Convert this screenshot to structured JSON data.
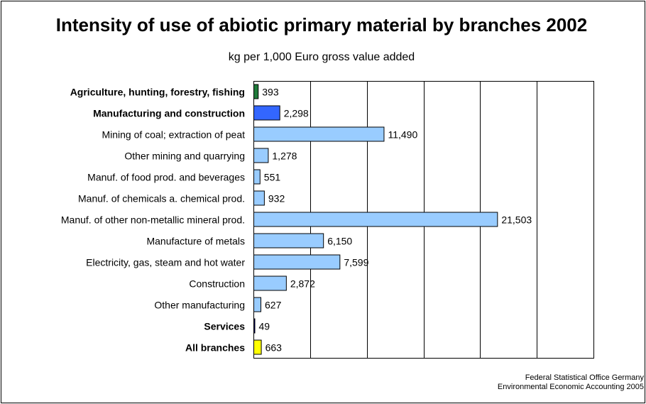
{
  "chart_data": {
    "type": "bar",
    "orientation": "horizontal",
    "title": "Intensity of use of abiotic primary material by branches 2002",
    "subtitle": "kg per 1,000 Euro gross value added",
    "categories": [
      "Agriculture, hunting, forestry, fishing",
      "Manufacturing and construction",
      "Mining of coal; extraction of peat",
      "Other mining and quarrying",
      "Manuf. of food prod. and beverages",
      "Manuf. of chemicals a. chemical prod.",
      "Manuf. of other non-metallic mineral prod.",
      "Manufacture of metals",
      "Electricity, gas, steam and hot water",
      "Construction",
      "Other manufacturing",
      "Services",
      "All branches"
    ],
    "values": [
      393,
      2298,
      11490,
      1278,
      551,
      932,
      21503,
      6150,
      7599,
      2872,
      627,
      49,
      663
    ],
    "value_labels": [
      "393",
      "2,298",
      "11,490",
      "1,278",
      "551",
      "932",
      "21,503",
      "6,150",
      "7,599",
      "2,872",
      "627",
      "49",
      "663"
    ],
    "bold_categories": [
      true,
      true,
      false,
      false,
      false,
      false,
      false,
      false,
      false,
      false,
      false,
      true,
      true
    ],
    "bar_colors": [
      "#1f7a3a",
      "#3366ff",
      "#99ccff",
      "#99ccff",
      "#99ccff",
      "#99ccff",
      "#99ccff",
      "#99ccff",
      "#99ccff",
      "#99ccff",
      "#99ccff",
      "#000080",
      "#ffff00"
    ],
    "xlim": [
      0,
      30000
    ],
    "gridline_step": 5000,
    "grid": true,
    "xaxis_tick_labels_shown": false
  },
  "source": {
    "line1": "Federal Statistical Office Germany",
    "line2": "Environmental Economic Accounting 2005"
  }
}
